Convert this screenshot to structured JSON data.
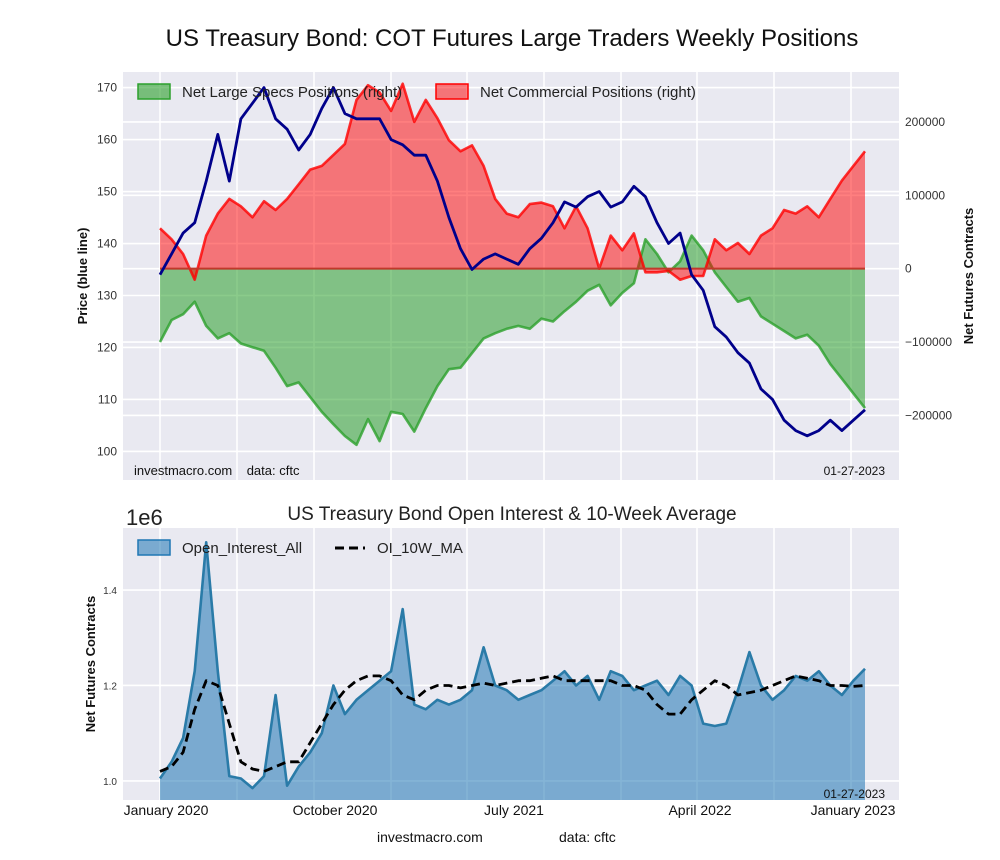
{
  "chart_data": [
    {
      "type": "area",
      "title": "US Treasury Bond: COT Futures Large Traders Weekly Positions",
      "ylabel_left": "Price (blue line)",
      "ylabel_right": "Net Futures Contracts",
      "ylim_left": [
        94.5,
        173
      ],
      "ylim_right": [
        -288000,
        268000
      ],
      "yticks_left": [
        100,
        110,
        120,
        130,
        140,
        150,
        160,
        170
      ],
      "yticks_right": [
        -200000,
        -100000,
        0,
        100000,
        200000
      ],
      "ytick_labels_right": [
        "−200000",
        "−100000",
        "0",
        "100000",
        "200000"
      ],
      "grid": true,
      "legend_position": "top-left",
      "x_start": "2019-12-27",
      "x_end": "2023-01-27",
      "x_step_days": 18,
      "annotation_left": "investmacro.com    data: cftc",
      "annotation_right": "01-27-2023",
      "series": [
        {
          "name": "Net Large Specs Positions (right)",
          "kind": "fill",
          "color": "#2ca02c",
          "values": [
            -100000,
            -70000,
            -62000,
            -45000,
            -78000,
            -95000,
            -88000,
            -102000,
            -107000,
            -112000,
            -135000,
            -160000,
            -155000,
            -175000,
            -195000,
            -212000,
            -228000,
            -240000,
            -205000,
            -235000,
            -195000,
            -198000,
            -222000,
            -190000,
            -160000,
            -137000,
            -135000,
            -115000,
            -95000,
            -88000,
            -82000,
            -78000,
            -82000,
            -68000,
            -72000,
            -58000,
            -45000,
            -30000,
            -22000,
            -50000,
            -33000,
            -20000,
            40000,
            20000,
            -5000,
            10000,
            45000,
            25000,
            -5000,
            -25000,
            -45000,
            -40000,
            -65000,
            -75000,
            -85000,
            -95000,
            -90000,
            -105000,
            -130000,
            -150000,
            -170000,
            -190000
          ]
        },
        {
          "name": "Net Commercial Positions (right)",
          "kind": "fill",
          "color": "#ff0000",
          "values": [
            55000,
            40000,
            20000,
            -15000,
            45000,
            75000,
            95000,
            85000,
            70000,
            92000,
            80000,
            95000,
            115000,
            135000,
            140000,
            155000,
            170000,
            230000,
            250000,
            240000,
            215000,
            252000,
            200000,
            230000,
            205000,
            175000,
            160000,
            168000,
            140000,
            95000,
            75000,
            70000,
            88000,
            90000,
            85000,
            55000,
            85000,
            55000,
            0,
            45000,
            25000,
            48000,
            -5000,
            -5000,
            -3000,
            -15000,
            -10000,
            -10000,
            40000,
            25000,
            35000,
            20000,
            45000,
            55000,
            80000,
            75000,
            85000,
            70000,
            95000,
            120000,
            140000,
            160000
          ]
        },
        {
          "name": "Price",
          "kind": "line",
          "color": "#00008b",
          "values": [
            134,
            138,
            142,
            144,
            152,
            161,
            152,
            164,
            167,
            170,
            164,
            162,
            158,
            161,
            166,
            170,
            165,
            164,
            164,
            164,
            160,
            159,
            157,
            157,
            152,
            145,
            139,
            135,
            137,
            138,
            137,
            136,
            139,
            141,
            144,
            148,
            147,
            149,
            150,
            147,
            148,
            151,
            149,
            144,
            140,
            142,
            134,
            131,
            124,
            122,
            119,
            117,
            112,
            110,
            106,
            104,
            103,
            104,
            106,
            104,
            106,
            108
          ]
        }
      ]
    },
    {
      "type": "area",
      "title": "US Treasury Bond Open Interest & 10-Week Average",
      "offset_label": "1e6",
      "ylabel": "Net Futures Contracts",
      "ylim": [
        0.96,
        1.53
      ],
      "yticks": [
        1.0,
        1.2,
        1.4
      ],
      "xticks": [
        "January 2020",
        "October 2020",
        "July 2021",
        "April 2022",
        "January 2023"
      ],
      "grid": true,
      "legend_position": "top-left",
      "annotation_right": "01-27-2023",
      "series": [
        {
          "name": "Open_Interest_All",
          "kind": "fill",
          "color": "#1f77b4",
          "values": [
            1.005,
            1.04,
            1.09,
            1.23,
            1.5,
            1.23,
            1.01,
            1.005,
            0.985,
            1.01,
            1.18,
            0.99,
            1.03,
            1.06,
            1.1,
            1.2,
            1.14,
            1.17,
            1.19,
            1.21,
            1.23,
            1.36,
            1.16,
            1.15,
            1.17,
            1.16,
            1.17,
            1.19,
            1.28,
            1.2,
            1.19,
            1.17,
            1.18,
            1.19,
            1.21,
            1.23,
            1.2,
            1.22,
            1.17,
            1.23,
            1.22,
            1.19,
            1.2,
            1.21,
            1.18,
            1.22,
            1.2,
            1.12,
            1.115,
            1.12,
            1.19,
            1.27,
            1.2,
            1.17,
            1.19,
            1.22,
            1.21,
            1.23,
            1.2,
            1.18,
            1.21,
            1.235
          ]
        },
        {
          "name": "OI_10W_MA",
          "kind": "dashed-line",
          "color": "#000000",
          "values": [
            1.02,
            1.03,
            1.06,
            1.15,
            1.21,
            1.2,
            1.12,
            1.04,
            1.025,
            1.02,
            1.03,
            1.04,
            1.04,
            1.08,
            1.12,
            1.16,
            1.19,
            1.21,
            1.22,
            1.22,
            1.21,
            1.18,
            1.17,
            1.19,
            1.2,
            1.2,
            1.195,
            1.2,
            1.205,
            1.2,
            1.205,
            1.21,
            1.21,
            1.215,
            1.22,
            1.21,
            1.21,
            1.21,
            1.21,
            1.21,
            1.2,
            1.2,
            1.19,
            1.16,
            1.14,
            1.14,
            1.17,
            1.19,
            1.21,
            1.2,
            1.18,
            1.185,
            1.19,
            1.2,
            1.21,
            1.22,
            1.215,
            1.21,
            1.2,
            1.2,
            1.198,
            1.2
          ]
        }
      ]
    }
  ],
  "footer": {
    "site": "investmacro.com",
    "source": "data: cftc"
  }
}
